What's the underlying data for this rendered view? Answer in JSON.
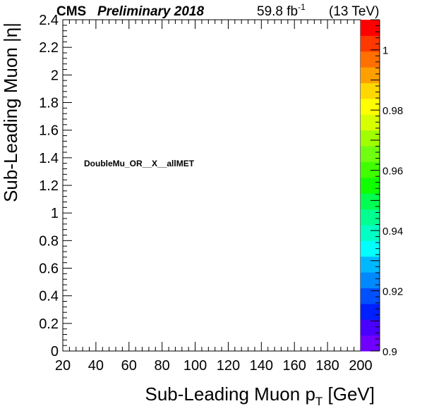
{
  "header": {
    "experiment": "CMS",
    "status": "Preliminary 2018",
    "lumi_value": "59.8 fb",
    "lumi_exp": "-1",
    "energy": "(13 TeV)"
  },
  "chart_data": {
    "type": "heatmap",
    "title": "",
    "annotation": "DoubleMu_OR__X__allMET",
    "xlabel_main": "Sub-Leading Muon p",
    "xlabel_sub": "T",
    "xlabel_unit": " [GeV]",
    "ylabel": "Sub-Leading Muon |η|",
    "xlim": [
      20,
      200
    ],
    "ylim": [
      0,
      2.4
    ],
    "x_ticks": [
      "20",
      "40",
      "60",
      "80",
      "100",
      "120",
      "140",
      "160",
      "180",
      "200"
    ],
    "y_ticks": [
      "0",
      "0.2",
      "0.4",
      "0.6",
      "0.8",
      "1",
      "1.2",
      "1.4",
      "1.6",
      "1.8",
      "2",
      "2.2",
      "2.4"
    ],
    "z_range": [
      0.9,
      1.01
    ],
    "z_ticks": [
      "0.9",
      "0.92",
      "0.94",
      "0.96",
      "0.98",
      "1"
    ],
    "palette": [
      "#7000ff",
      "#4a00ff",
      "#0020ff",
      "#0050ff",
      "#0088ff",
      "#00b8ff",
      "#00ffff",
      "#00ffc4",
      "#00ff90",
      "#00ff50",
      "#10ff00",
      "#40ff00",
      "#70ff10",
      "#a0ff00",
      "#d8ff00",
      "#ffff00",
      "#ffd800",
      "#ffa000",
      "#ff7000",
      "#ff3800",
      "#ff0000"
    ],
    "cells": []
  }
}
